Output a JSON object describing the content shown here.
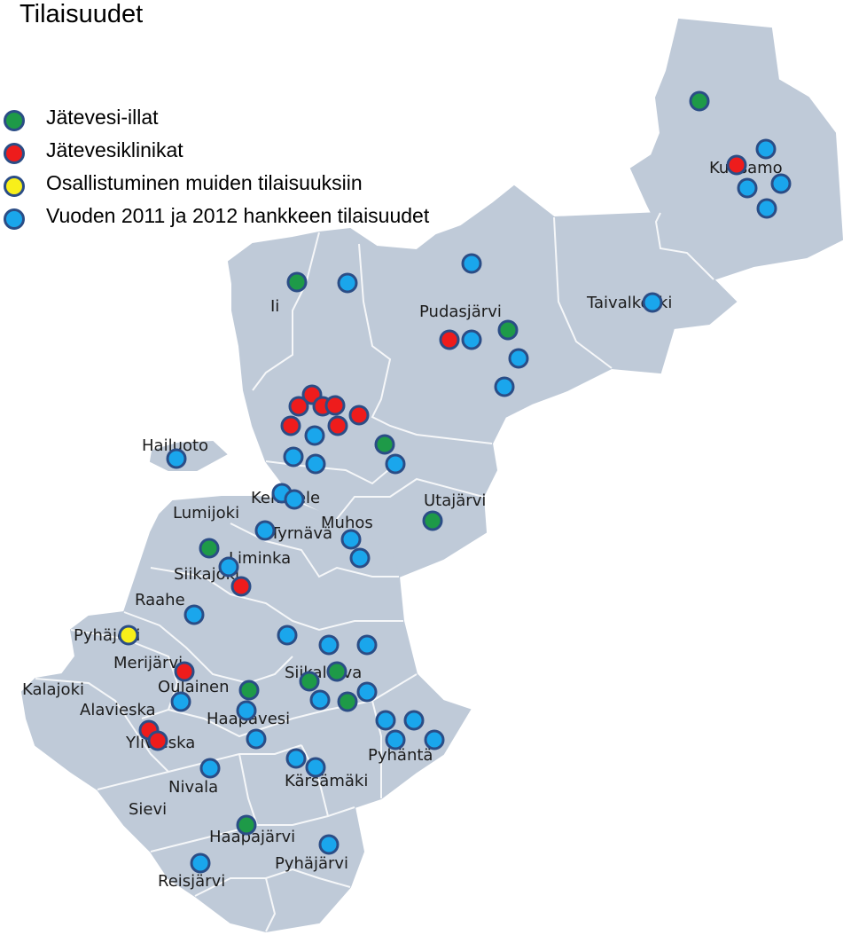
{
  "title": "Tilaisuudet",
  "colors": {
    "region_fill": "#bfcad8",
    "border": "#ffffff",
    "marker_outline": "#2b4d86"
  },
  "legend": [
    {
      "label": "Jätevesi-illat",
      "color": "#1e9a48"
    },
    {
      "label": "Jätevesiklinikat",
      "color": "#ee1c1c"
    },
    {
      "label": "Osallistuminen muiden tilaisuuksiin",
      "color": "#f8ef1a"
    },
    {
      "label": "Vuoden 2011 ja 2012 hankkeen tilaisuudet",
      "color": "#1aa6ec"
    }
  ],
  "places": [
    "Kuusamo",
    "Taivalkoski",
    "Pudasjärvi",
    "Ii",
    "Hailuoto",
    "Kempele",
    "Utajärvi",
    "Lumijoki",
    "Tyrnävä",
    "Muhos",
    "Liminka",
    "Siikajoki",
    "Raahe",
    "Pyhäjoki",
    "Merijärvi",
    "Kalajoki",
    "Oulainen",
    "Siikalatva",
    "Alavieska",
    "Haapavesi",
    "Ylivieska",
    "Pyhäntä",
    "Nivala",
    "Kärsämäki",
    "Sievi",
    "Haapajärvi",
    "Pyhäjärvi",
    "Reisjärvi"
  ]
}
